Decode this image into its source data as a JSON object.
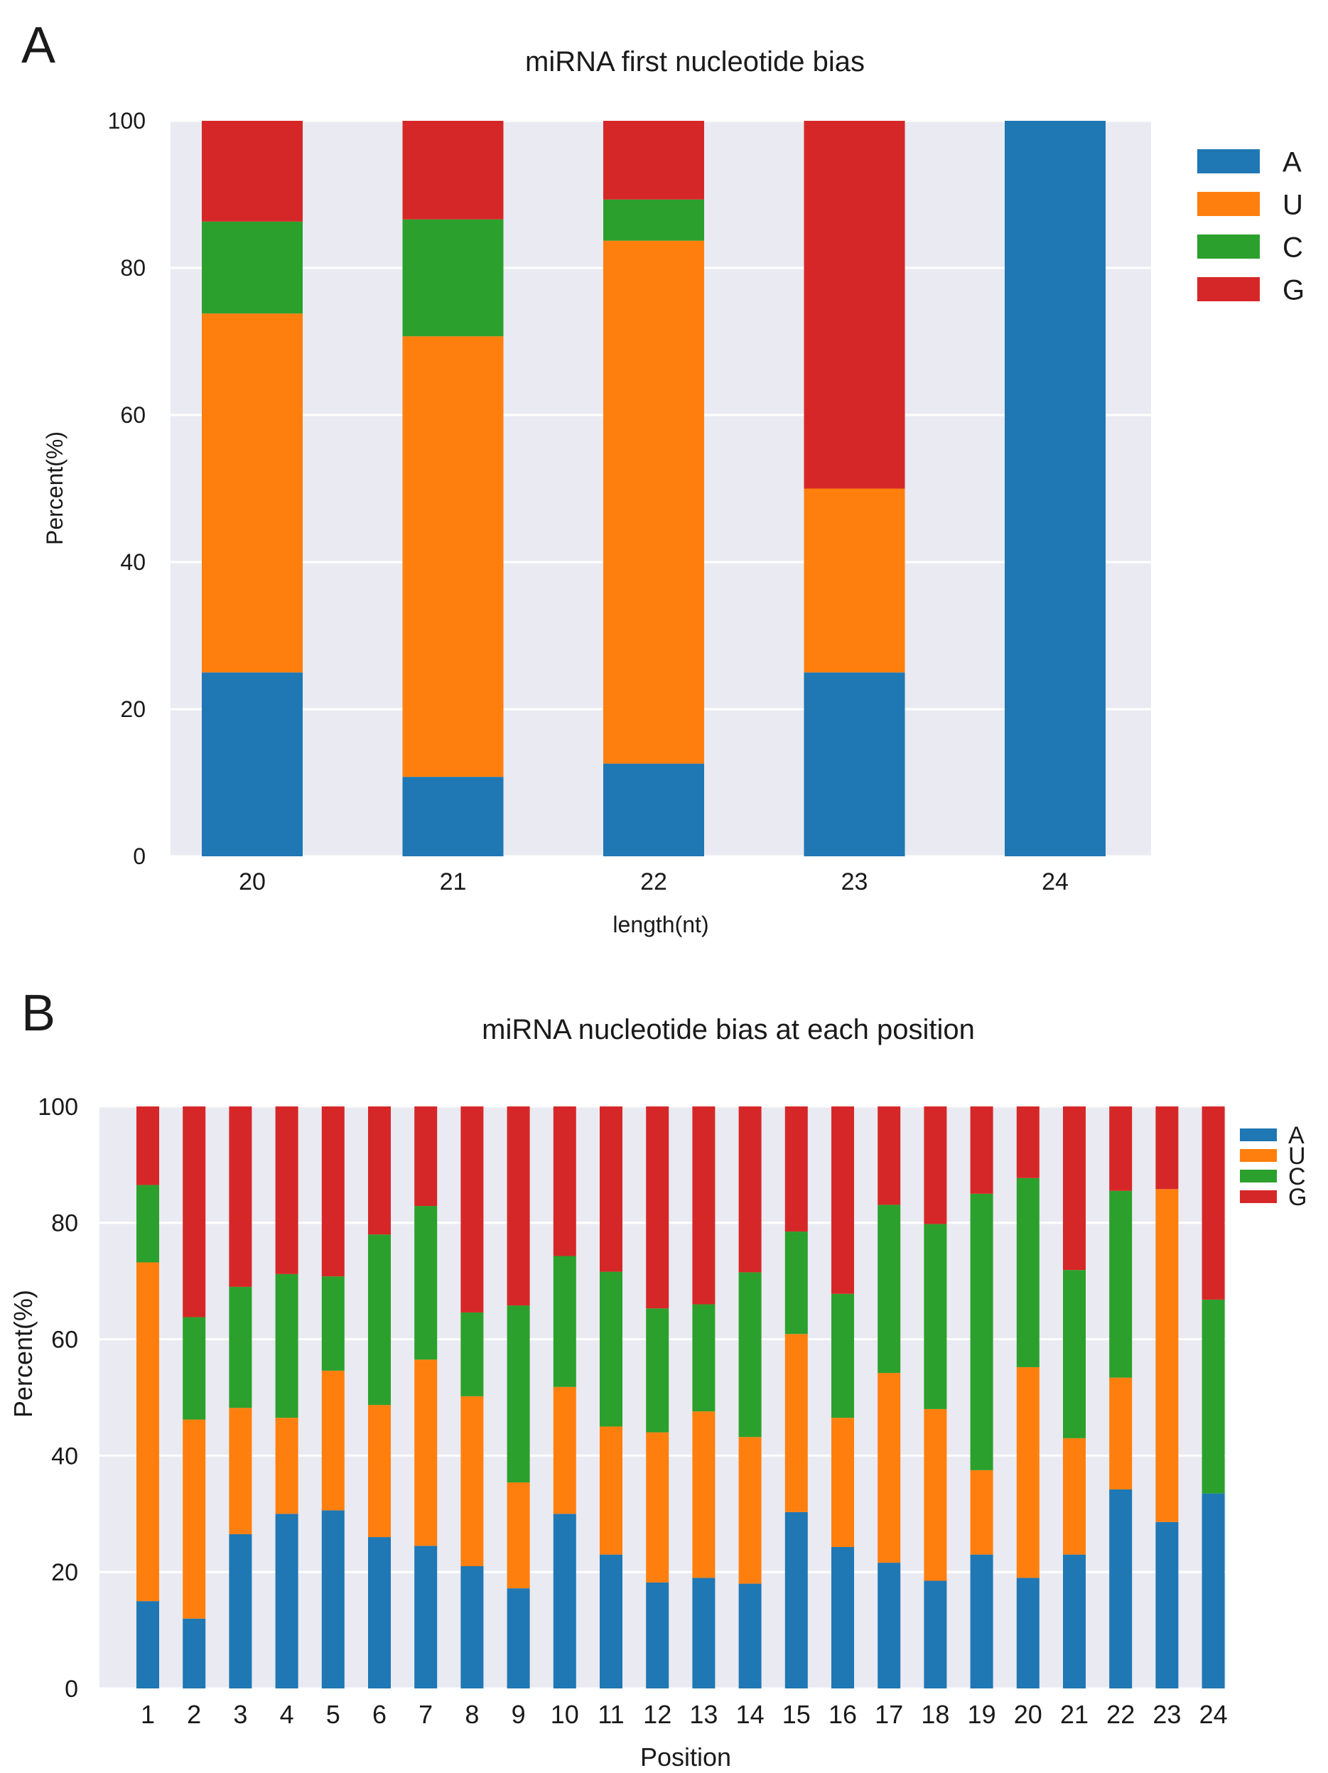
{
  "colors": {
    "A": "#1f77b4",
    "U": "#ff7f0e",
    "C": "#2ca02c",
    "G": "#d62728",
    "plot_bg": "#eaeaf2",
    "grid": "#ffffff"
  },
  "chart_data": [
    {
      "panel_label": "A",
      "type": "bar",
      "stacked": true,
      "title": "miRNA first nucleotide bias",
      "xlabel": "length(nt)",
      "ylabel": "Percent(%)",
      "ylim": [
        0,
        100
      ],
      "yticks": [
        "0",
        "20",
        "40",
        "60",
        "80",
        "100"
      ],
      "legend_position": "outside-right",
      "categories": [
        "20",
        "21",
        "22",
        "23",
        "24"
      ],
      "series": [
        {
          "name": "A",
          "values": [
            25.0,
            10.8,
            12.6,
            25.0,
            100.0
          ]
        },
        {
          "name": "U",
          "values": [
            48.8,
            59.9,
            71.1,
            25.0,
            0.0
          ]
        },
        {
          "name": "C",
          "values": [
            12.5,
            15.9,
            5.6,
            0.0,
            0.0
          ]
        },
        {
          "name": "G",
          "values": [
            13.7,
            13.4,
            10.7,
            50.0,
            0.0
          ]
        }
      ]
    },
    {
      "panel_label": "B",
      "type": "bar",
      "stacked": true,
      "title": "miRNA nucleotide bias at each position",
      "xlabel": "Position",
      "ylabel": "Percent(%)",
      "ylim": [
        0,
        100
      ],
      "yticks": [
        "0",
        "20",
        "40",
        "60",
        "80",
        "100"
      ],
      "legend_position": "outside-top-right",
      "categories": [
        "1",
        "2",
        "3",
        "4",
        "5",
        "6",
        "7",
        "8",
        "9",
        "10",
        "11",
        "12",
        "13",
        "14",
        "15",
        "16",
        "17",
        "18",
        "19",
        "20",
        "21",
        "22",
        "23",
        "24"
      ],
      "series": [
        {
          "name": "A",
          "values": [
            15.0,
            12.0,
            26.5,
            30.0,
            30.6,
            26.0,
            24.5,
            21.0,
            17.2,
            30.0,
            23.0,
            18.2,
            19.0,
            18.0,
            30.3,
            24.3,
            21.6,
            18.5,
            23.0,
            19.0,
            23.0,
            34.2,
            28.6,
            33.5
          ]
        },
        {
          "name": "U",
          "values": [
            58.2,
            34.2,
            21.7,
            16.5,
            24.0,
            22.7,
            32.0,
            29.2,
            18.2,
            21.8,
            22.0,
            25.8,
            28.6,
            25.2,
            30.6,
            22.2,
            32.6,
            29.5,
            14.5,
            36.2,
            20.0,
            19.2,
            57.2,
            0.0
          ]
        },
        {
          "name": "C",
          "values": [
            13.3,
            17.6,
            20.8,
            24.7,
            16.2,
            29.3,
            26.4,
            14.4,
            30.4,
            22.5,
            26.6,
            21.3,
            18.4,
            28.3,
            17.6,
            21.3,
            28.9,
            31.8,
            47.5,
            32.5,
            28.9,
            32.1,
            0.0,
            33.3
          ]
        },
        {
          "name": "G",
          "values": [
            13.5,
            36.2,
            31.0,
            28.8,
            29.2,
            22.0,
            17.1,
            35.4,
            34.2,
            25.7,
            28.4,
            34.7,
            34.0,
            28.5,
            21.5,
            32.2,
            16.9,
            20.2,
            15.0,
            12.3,
            28.1,
            14.5,
            14.2,
            33.2
          ]
        }
      ]
    }
  ]
}
